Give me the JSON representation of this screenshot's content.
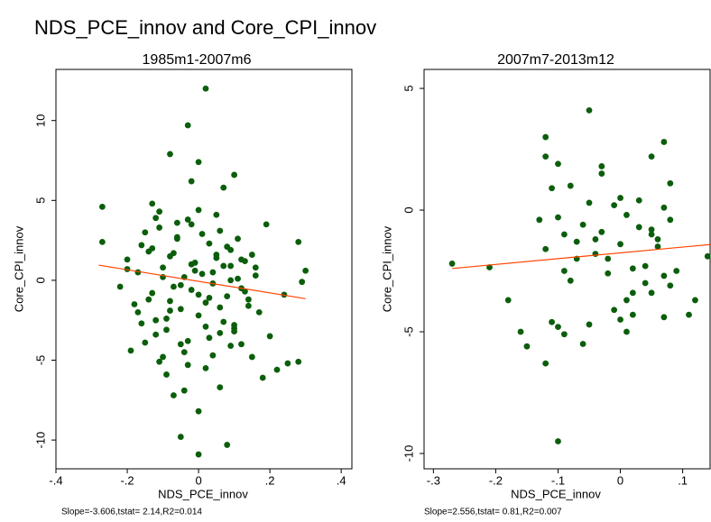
{
  "title": "NDS_PCE_innov and Core_CPI_innov",
  "chart_data": [
    {
      "type": "scatter",
      "title": "1985m1-2007m6",
      "xlabel": "NDS_PCE_innov",
      "ylabel": "Core_CPI_innov",
      "note": "Slope=-3.606,tstat= 2.14,R2=0.014",
      "color": "#0b5e0b",
      "xlim": [
        -0.4,
        0.43
      ],
      "ylim": [
        -11.8,
        13.2
      ],
      "xticks": [
        {
          "value": -0.4,
          "label": "-.4"
        },
        {
          "value": -0.2,
          "label": "-.2"
        },
        0,
        {
          "value": 0.2,
          "label": ".2"
        },
        {
          "value": 0.4,
          "label": ".4"
        }
      ],
      "yticks": [
        10,
        5,
        0,
        -5,
        -10
      ],
      "x": [
        -0.27,
        -0.27,
        0.02,
        -0.03,
        -0.08,
        0.0,
        0.1,
        -0.02,
        0.07,
        0.28,
        0.3,
        0.29,
        0.25,
        0.28,
        0.22,
        0.18,
        0.08,
        0.0,
        0.0,
        -0.05,
        -0.07,
        -0.04,
        0.06,
        -0.09,
        0.24,
        0.19,
        0.2,
        0.15,
        -0.2,
        -0.19,
        -0.17,
        -0.15,
        -0.14,
        -0.13,
        -0.12,
        -0.11,
        -0.1,
        -0.09,
        -0.08,
        -0.07,
        -0.06,
        -0.05,
        -0.04,
        -0.03,
        -0.02,
        -0.01,
        0.0,
        0.01,
        0.02,
        0.03,
        0.04,
        0.05,
        0.06,
        0.07,
        0.08,
        0.09,
        0.1,
        0.11,
        0.12,
        0.13,
        0.14,
        0.16,
        0.17,
        -0.18,
        -0.16,
        -0.13,
        -0.11,
        -0.09,
        -0.07,
        -0.05,
        -0.03,
        -0.01,
        0.01,
        0.03,
        0.05,
        0.07,
        0.09,
        0.11,
        0.13,
        0.15,
        -0.2,
        -0.17,
        -0.14,
        -0.12,
        -0.1,
        -0.08,
        -0.06,
        -0.04,
        -0.02,
        0.0,
        0.02,
        0.04,
        0.06,
        0.08,
        0.1,
        0.12,
        0.14,
        -0.15,
        -0.12,
        -0.1,
        -0.06,
        -0.03,
        0.0,
        0.03,
        0.06,
        0.09,
        0.12,
        -0.22,
        -0.16,
        -0.11,
        -0.05,
        0.02,
        0.05,
        0.1,
        0.16,
        -0.13,
        -0.08,
        -0.02,
        0.04,
        0.09
      ],
      "values": [
        4.6,
        2.4,
        12.0,
        9.7,
        7.9,
        7.4,
        6.6,
        6.2,
        5.8,
        2.4,
        0.6,
        -0.1,
        -5.2,
        -5.1,
        -5.6,
        -6.1,
        -10.3,
        -10.9,
        -8.2,
        -9.8,
        -7.2,
        -6.9,
        -6.7,
        -5.9,
        -0.9,
        3.5,
        -3.5,
        -4.8,
        1.3,
        -4.4,
        0.5,
        3.0,
        -1.2,
        2.0,
        -2.5,
        4.3,
        0.8,
        -3.1,
        1.5,
        -0.4,
        2.7,
        -1.8,
        0.2,
        3.8,
        -0.6,
        1.1,
        -2.2,
        0.4,
        -1.4,
        2.3,
        -0.2,
        4.1,
        -3.3,
        0.9,
        -1.0,
        1.9,
        -2.8,
        0.1,
        -4.0,
        1.2,
        -1.6,
        0.3,
        -2.0,
        -1.5,
        2.2,
        -0.8,
        3.3,
        -2.4,
        1.7,
        -0.3,
        -3.8,
        0.6,
        2.9,
        -1.1,
        1.4,
        -2.6,
        0.0,
        2.6,
        -0.7,
        1.6,
        0.7,
        -2.0,
        1.8,
        -3.4,
        0.2,
        -1.3,
        3.6,
        -4.5,
        1.0,
        -0.9,
        -2.9,
        0.5,
        -1.7,
        2.1,
        -3.0,
        -0.5,
        -1.2,
        -3.9,
        3.9,
        -4.8,
        2.6,
        -5.3,
        4.4,
        -3.6,
        3.1,
        -4.1,
        1.3,
        -0.4,
        -2.7,
        -5.1,
        -4.0,
        -5.5,
        1.6,
        -3.2,
        0.8,
        4.8,
        -1.9,
        3.5,
        -4.7,
        0.9
      ],
      "fit": {
        "color": "#ff4500",
        "x": [
          -0.28,
          0.3
        ],
        "values": [
          0.95,
          -1.15
        ]
      }
    },
    {
      "type": "scatter",
      "title": "2007m7-2013m12",
      "xlabel": "NDS_PCE_innov",
      "ylabel": "Core_CPI_innov",
      "note": "Slope=2.556,tstat= 0.81,R2=0.007",
      "color": "#0b5e0b",
      "xlim": [
        -0.315,
        0.144
      ],
      "ylim": [
        -10.63,
        5.78
      ],
      "xticks": [
        {
          "value": -0.3,
          "label": "-.3"
        },
        {
          "value": -0.2,
          "label": "-.2"
        },
        {
          "value": -0.1,
          "label": "-.1"
        },
        0,
        {
          "value": 0.1,
          "label": ".1"
        }
      ],
      "yticks": [
        5,
        0,
        -5,
        -10
      ],
      "x": [
        -0.27,
        -0.21,
        -0.18,
        -0.16,
        -0.15,
        -0.12,
        -0.1,
        -0.12,
        -0.12,
        -0.1,
        -0.05,
        0.07,
        0.05,
        0.08,
        0.11,
        0.12,
        0.14,
        0.07,
        0.02,
        0.0,
        -0.12,
        -0.11,
        -0.1,
        -0.09,
        -0.08,
        -0.07,
        -0.06,
        -0.05,
        -0.04,
        -0.03,
        -0.02,
        -0.01,
        0.0,
        0.01,
        0.02,
        0.03,
        0.04,
        0.05,
        0.06,
        0.07,
        0.08,
        0.09,
        -0.11,
        -0.09,
        -0.07,
        -0.05,
        -0.03,
        -0.01,
        0.01,
        0.03,
        0.05,
        0.07,
        -0.1,
        -0.08,
        -0.06,
        -0.04,
        -0.02,
        0.0,
        0.02,
        0.04,
        0.06,
        -0.13,
        -0.09,
        -0.03,
        0.01,
        0.05,
        0.08
      ],
      "values": [
        -2.2,
        -2.35,
        -3.7,
        -5.0,
        -5.6,
        -6.3,
        -9.5,
        3.0,
        2.2,
        1.9,
        4.1,
        2.8,
        2.2,
        1.1,
        -4.3,
        -3.7,
        -1.9,
        -4.4,
        -4.3,
        -4.5,
        -1.6,
        0.9,
        -0.3,
        -1.0,
        1.0,
        -2.0,
        -0.6,
        0.3,
        -1.2,
        1.8,
        -2.6,
        0.2,
        -1.4,
        -0.2,
        -3.4,
        0.4,
        -2.3,
        -0.8,
        -1.5,
        -2.7,
        -0.4,
        -2.5,
        -4.6,
        -2.5,
        -1.3,
        -4.7,
        1.5,
        -4.1,
        -3.7,
        -0.7,
        -1.0,
        0.1,
        -4.8,
        -2.9,
        -5.5,
        -1.8,
        -2.0,
        0.5,
        -2.4,
        -3.0,
        -1.2,
        -0.4,
        -5.1,
        -0.9,
        -5.0,
        -3.4,
        -3.1
      ],
      "fit": {
        "color": "#ff4500",
        "x": [
          -0.27,
          0.15
        ],
        "values": [
          -2.4,
          -1.4
        ]
      }
    }
  ]
}
